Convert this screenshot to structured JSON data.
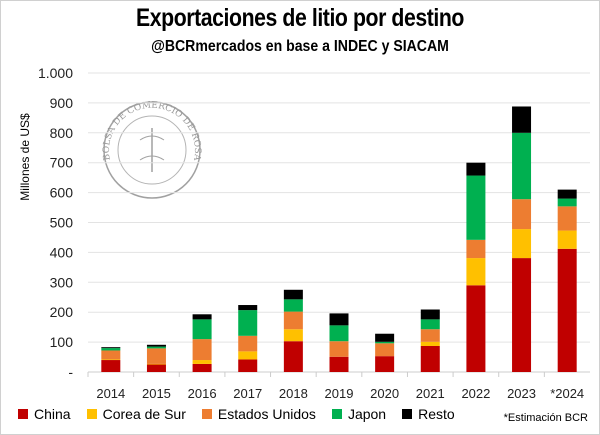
{
  "chart_data": {
    "type": "bar",
    "stacked": true,
    "title": "Exportaciones de litio por destino",
    "subtitle": "@BCRmercados en base a INDEC y SIACAM",
    "xlabel": "",
    "ylabel": "Millones de US$",
    "ylim": [
      0,
      1000
    ],
    "yticks": [
      0,
      100,
      200,
      300,
      400,
      500,
      600,
      700,
      800,
      900,
      1000
    ],
    "ytick_labels": [
      "-",
      "100",
      "200",
      "300",
      "400",
      "500",
      "600",
      "700",
      "800",
      "900",
      "1.000"
    ],
    "grid": true,
    "legend_position": "bottom",
    "categories": [
      "2014",
      "2015",
      "2016",
      "2017",
      "2018",
      "2019",
      "2020",
      "2021",
      "2022",
      "2023",
      "*2024"
    ],
    "series": [
      {
        "name": "China",
        "color": "#c00000",
        "values": [
          40,
          25,
          27,
          42,
          103,
          51,
          53,
          87,
          290,
          381,
          412
        ]
      },
      {
        "name": "Corea de Sur",
        "color": "#ffc000",
        "values": [
          2,
          2,
          13,
          27,
          40,
          0,
          0,
          14,
          91,
          97,
          61
        ]
      },
      {
        "name": "Estados Unidos",
        "color": "#ed7d31",
        "values": [
          30,
          52,
          70,
          52,
          59,
          52,
          43,
          42,
          61,
          100,
          81
        ]
      },
      {
        "name": "Japon",
        "color": "#00b050",
        "values": [
          8,
          6,
          66,
          86,
          41,
          53,
          5,
          33,
          215,
          222,
          26
        ]
      },
      {
        "name": "Resto",
        "color": "#000000",
        "values": [
          3,
          6,
          17,
          17,
          32,
          40,
          27,
          33,
          43,
          88,
          30
        ]
      }
    ],
    "note": "*Estimación BCR",
    "logo_text": "BOLSA DE COMERCIO DE ROSARIO"
  }
}
